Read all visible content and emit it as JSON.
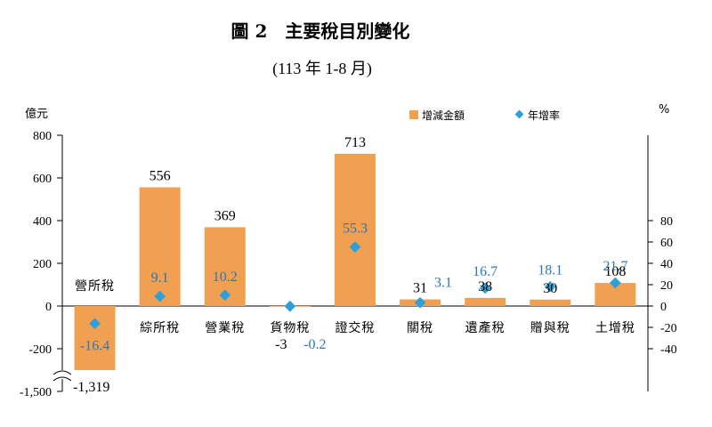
{
  "chart_data": {
    "type": "bar",
    "title": "圖 2　主要稅目別變化",
    "subtitle": "(113 年 1-8 月)",
    "ylabel_left": "億元",
    "ylabel_right": "%",
    "categories": [
      "營所稅",
      "綜所稅",
      "營業稅",
      "貨物稅",
      "證交稅",
      "關稅",
      "遺產稅",
      "贈與稅",
      "土增稅"
    ],
    "series": [
      {
        "name": "增減金額",
        "kind": "bar",
        "axis": "left",
        "color": "#F0A050",
        "values": [
          -1319,
          556,
          369,
          -3,
          713,
          31,
          38,
          30,
          108
        ],
        "labels": [
          "-1,319",
          "556",
          "369",
          "-3",
          "713",
          "31",
          "38",
          "30",
          "108"
        ]
      },
      {
        "name": "年增率",
        "kind": "marker",
        "axis": "right",
        "color": "#2E9FDA",
        "values": [
          -16.4,
          9.1,
          10.2,
          -0.2,
          55.3,
          3.1,
          16.7,
          18.1,
          21.7
        ],
        "labels": [
          "-16.4",
          "9.1",
          "10.2",
          "-0.2",
          "55.3",
          "3.1",
          "16.7",
          "18.1",
          "21.7"
        ]
      }
    ],
    "left_axis": {
      "ylim": [
        -200,
        800
      ],
      "ticks": [
        "800",
        "600",
        "400",
        "200",
        "0",
        "-200"
      ],
      "broken_bottom_tick": "-1,500",
      "broken": true
    },
    "right_axis": {
      "ylim": [
        -40,
        80
      ],
      "ticks": [
        "80",
        "60",
        "40",
        "20",
        "0",
        "-20",
        "-40"
      ]
    },
    "grid": false,
    "legend": "top-right"
  }
}
